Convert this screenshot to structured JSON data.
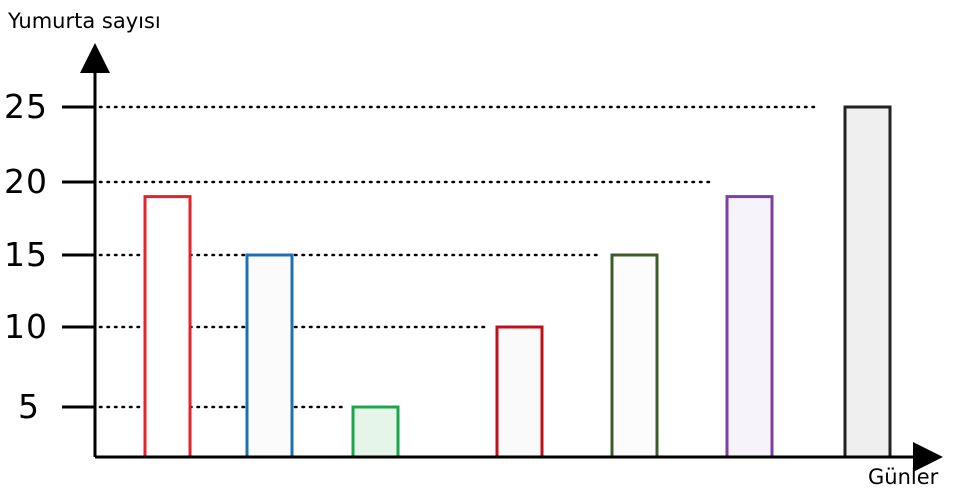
{
  "chart_data": {
    "type": "bar",
    "ylabel": "Yumurta sayısı",
    "xlabel": "Günler",
    "yticks": [
      "25",
      "20",
      "15",
      "10",
      "5"
    ],
    "ytick_values": [
      25,
      20,
      15,
      10,
      5
    ],
    "ylim": [
      0,
      27
    ],
    "grid": "dotted",
    "values": [
      19,
      15,
      5,
      10,
      15,
      19,
      25
    ],
    "colors": [
      "#e8222b",
      "#1f6fb5",
      "#1aa64b",
      "#c0101c",
      "#3e5b2a",
      "#7b3fa6",
      "#222222"
    ],
    "fills": [
      "#ffffff",
      "#fbfbfc",
      "#e5f5ea",
      "#fafafa",
      "#fcfcfc",
      "#f6f3fa",
      "#efefef"
    ]
  }
}
